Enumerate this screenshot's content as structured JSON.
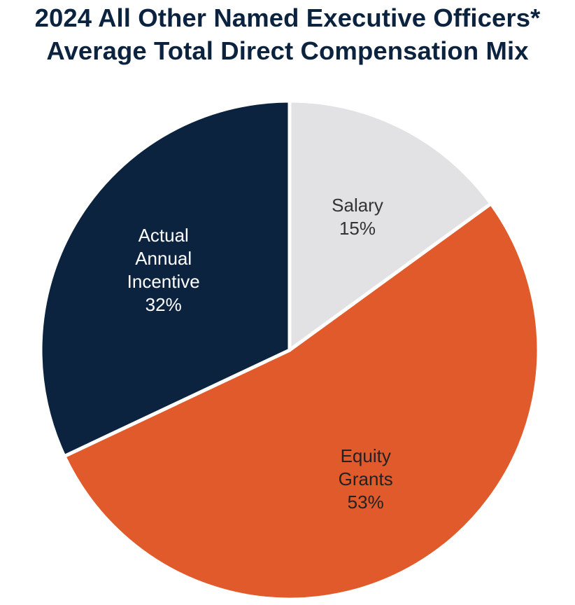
{
  "chart_data": {
    "type": "pie",
    "title_lines": [
      "2024 All Other Named Executive Officers*",
      "Average Total Direct Compensation Mix"
    ],
    "slices": [
      {
        "name": "Salary",
        "label_lines": [
          "Salary"
        ],
        "value": 15,
        "display": "15%",
        "color": "#e2e2e4",
        "text_color": "#333333"
      },
      {
        "name": "Equity Grants",
        "label_lines": [
          "Equity",
          "Grants"
        ],
        "value": 53,
        "display": "53%",
        "color": "#e15a2b",
        "text_color": "#222222"
      },
      {
        "name": "Actual Annual Incentive",
        "label_lines": [
          "Actual",
          "Annual",
          "Incentive"
        ],
        "value": 32,
        "display": "32%",
        "color": "#0c2340",
        "text_color": "#ffffff"
      }
    ]
  },
  "colors": {
    "title": "#0c2340",
    "separator": "#ffffff"
  }
}
